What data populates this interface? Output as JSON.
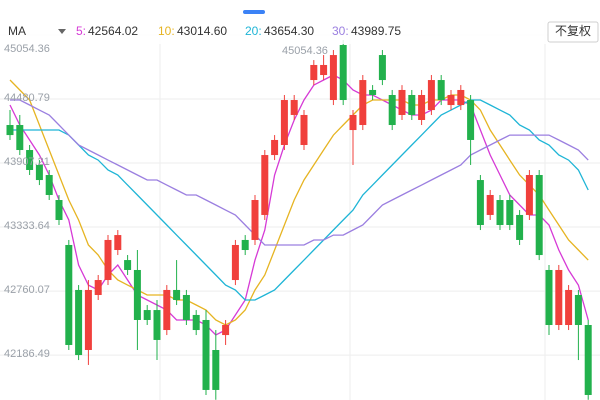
{
  "chart_data": {
    "type": "candlestick",
    "indicator_label": "MA",
    "adjust_button": "不复权",
    "ylim": [
      41784,
      45189
    ],
    "yticks": [
      45054.36,
      44480.79,
      43907.21,
      43333.64,
      42760.07,
      42186.49
    ],
    "grid": true,
    "up_color": "#f0403c",
    "down_color": "#22b14c",
    "annotation": 45054.36,
    "open": [
      44248,
      44248,
      44024,
      43890,
      43800,
      43576,
      43173,
      42770,
      42232,
      42725,
      42859,
      43128,
      43038,
      42949,
      42590,
      42590,
      42411,
      42770,
      42725,
      42546,
      42501,
      42232,
      42366,
      42859,
      43218,
      43218,
      43442,
      43979,
      44069,
      44338,
      44069,
      44651,
      44696,
      44472,
      44965,
      44203,
      44248,
      44562,
      44875,
      44517,
      44338,
      44517,
      44293,
      44382,
      44651,
      44427,
      44427,
      44472,
      43755,
      43442,
      43576,
      43576,
      43442,
      43442,
      43800,
      42949,
      42456,
      42456,
      42725,
      42456
    ],
    "close": [
      44158,
      44024,
      43845,
      43755,
      43621,
      43397,
      42277,
      42187,
      42770,
      42859,
      43218,
      43262,
      42949,
      42501,
      42501,
      42322,
      42770,
      42680,
      42501,
      42411,
      41874,
      41874,
      42456,
      43173,
      43128,
      43576,
      43979,
      44114,
      44472,
      44472,
      44338,
      44786,
      44786,
      44875,
      44472,
      44338,
      44651,
      44517,
      44651,
      44248,
      44562,
      44338,
      44517,
      44651,
      44472,
      44517,
      44562,
      44114,
      43352,
      43621,
      43352,
      43352,
      43218,
      43800,
      43083,
      42456,
      42949,
      42770,
      42456,
      41829
    ],
    "high": [
      44382,
      44338,
      44069,
      43934,
      43845,
      43621,
      43218,
      42814,
      42859,
      42904,
      43262,
      43307,
      43083,
      43128,
      42635,
      42680,
      42814,
      43038,
      42770,
      42590,
      42590,
      42411,
      42501,
      43218,
      43262,
      43621,
      44024,
      44158,
      44517,
      44517,
      44382,
      44830,
      44875,
      44920,
      45010,
      44382,
      44696,
      44606,
      44920,
      44562,
      44606,
      44562,
      44562,
      44696,
      44696,
      44562,
      44606,
      44517,
      43800,
      43666,
      43621,
      43621,
      43486,
      43845,
      43845,
      42994,
      42994,
      42814,
      42770,
      42501
    ],
    "low": [
      44114,
      43979,
      43800,
      43710,
      43576,
      43352,
      42232,
      42142,
      42098,
      42680,
      42814,
      43083,
      42904,
      42232,
      42456,
      42142,
      42366,
      42635,
      42456,
      42366,
      41829,
      41786,
      42277,
      42814,
      43083,
      43173,
      43397,
      43934,
      44024,
      44293,
      44024,
      44606,
      44651,
      44427,
      44427,
      43890,
      44203,
      44472,
      44606,
      44203,
      44293,
      44293,
      44248,
      44338,
      44427,
      44382,
      44382,
      43890,
      43307,
      43397,
      43307,
      43307,
      43173,
      43397,
      43038,
      42366,
      42411,
      42411,
      42142,
      41786
    ],
    "ma_series": [
      {
        "name": "5:",
        "color": "#d63ad6",
        "legend_value": {
          "value": 42564.02,
          "label": "42564.02"
        },
        "values": [
          44427,
          44248,
          44114,
          43979,
          43800,
          43576,
          43397,
          42994,
          42814,
          42770,
          42904,
          42994,
          42859,
          42725,
          42680,
          42635,
          42590,
          42501,
          42501,
          42501,
          42456,
          42366,
          42411,
          42546,
          42680,
          43038,
          43307,
          43800,
          44069,
          44293,
          44472,
          44606,
          44651,
          44696,
          44651,
          44562,
          44517,
          44517,
          44472,
          44427,
          44382,
          44338,
          44338,
          44382,
          44472,
          44472,
          44472,
          44427,
          44203,
          43979,
          43800,
          43621,
          43531,
          43442,
          43442,
          43352,
          43128,
          42949,
          42814,
          42501
        ]
      },
      {
        "name": "10:",
        "color": "#e6b422",
        "legend_value": {
          "value": 43014.6,
          "label": "43014.60"
        },
        "values": [
          44651,
          44562,
          44472,
          44248,
          44024,
          43800,
          43576,
          43397,
          43173,
          43083,
          42949,
          42859,
          42814,
          42770,
          42725,
          42725,
          42725,
          42680,
          42680,
          42635,
          42590,
          42501,
          42456,
          42501,
          42590,
          42770,
          42904,
          43128,
          43352,
          43576,
          43755,
          43890,
          44024,
          44158,
          44248,
          44338,
          44427,
          44472,
          44472,
          44472,
          44472,
          44427,
          44427,
          44472,
          44472,
          44517,
          44517,
          44472,
          44382,
          44203,
          44069,
          43934,
          43800,
          43710,
          43621,
          43486,
          43352,
          43218,
          43128,
          43038
        ]
      },
      {
        "name": "20:",
        "color": "#1fb5d6",
        "legend_value": {
          "value": 43654.3,
          "label": "43654.30"
        },
        "values": [
          44203,
          44203,
          44203,
          44203,
          44203,
          44203,
          44158,
          44069,
          43979,
          43934,
          43845,
          43800,
          43710,
          43621,
          43531,
          43442,
          43352,
          43262,
          43173,
          43083,
          42994,
          42904,
          42814,
          42770,
          42680,
          42680,
          42725,
          42770,
          42859,
          42949,
          43038,
          43128,
          43218,
          43307,
          43397,
          43486,
          43621,
          43710,
          43800,
          43890,
          43979,
          44069,
          44158,
          44248,
          44338,
          44382,
          44427,
          44472,
          44472,
          44427,
          44382,
          44338,
          44248,
          44203,
          44114,
          44069,
          43979,
          43934,
          43845,
          43666
        ]
      },
      {
        "name": "30:",
        "color": "#9b7fe0",
        "legend_value": {
          "value": 43989.75,
          "label": "43989.75"
        },
        "values": [
          44472,
          44472,
          44427,
          44382,
          44338,
          44248,
          44158,
          44069,
          44024,
          43979,
          43934,
          43890,
          43845,
          43800,
          43755,
          43755,
          43710,
          43666,
          43621,
          43621,
          43576,
          43531,
          43486,
          43442,
          43352,
          43262,
          43173,
          43173,
          43173,
          43173,
          43173,
          43218,
          43218,
          43262,
          43262,
          43307,
          43352,
          43442,
          43531,
          43576,
          43621,
          43666,
          43710,
          43755,
          43800,
          43845,
          43890,
          43979,
          44024,
          44069,
          44114,
          44158,
          44158,
          44158,
          44158,
          44158,
          44114,
          44069,
          44024,
          43934
        ]
      }
    ]
  }
}
